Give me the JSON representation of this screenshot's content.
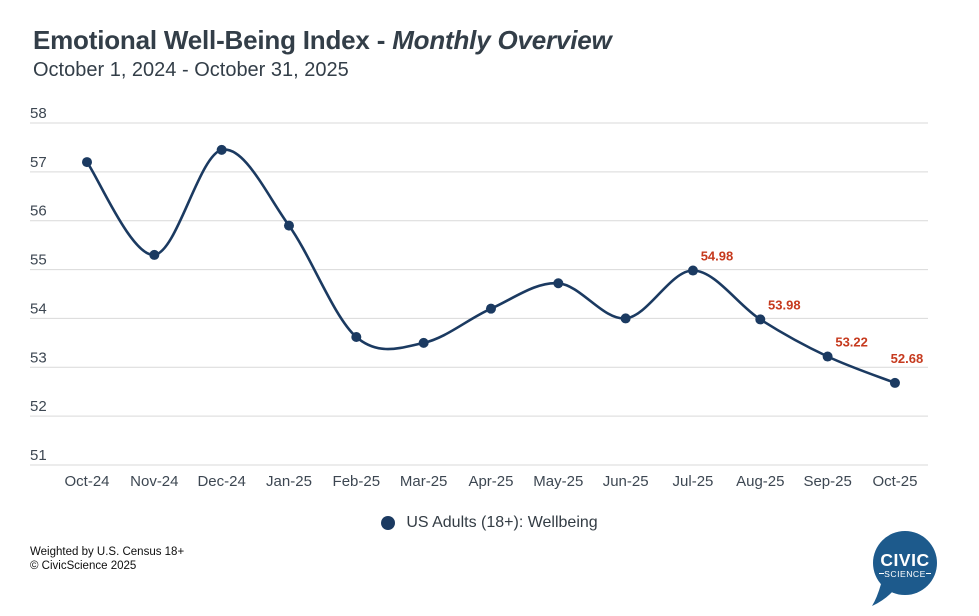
{
  "header": {
    "title_main": "Emotional Well-Being Index - ",
    "title_emphasis": "Monthly Overview",
    "subtitle": "October 1, 2024 - October 31, 2025"
  },
  "chart_data": {
    "type": "line",
    "title": "Emotional Well-Being Index - Monthly Overview",
    "subtitle": "October 1, 2024 - October 31, 2025",
    "categories": [
      "Oct-24",
      "Nov-24",
      "Dec-24",
      "Jan-25",
      "Feb-25",
      "Mar-25",
      "Apr-25",
      "May-25",
      "Jun-25",
      "Jul-25",
      "Aug-25",
      "Sep-25",
      "Oct-25"
    ],
    "series": [
      {
        "name": "US Adults (18+): Wellbeing",
        "values": [
          57.2,
          55.3,
          57.45,
          55.9,
          53.62,
          53.5,
          54.2,
          54.72,
          54.0,
          54.98,
          53.98,
          53.22,
          52.68
        ]
      }
    ],
    "data_labels": [
      null,
      null,
      null,
      null,
      null,
      null,
      null,
      null,
      null,
      "54.98",
      "53.98",
      "53.22",
      "52.68"
    ],
    "ylim": [
      51,
      58
    ],
    "y_ticks": [
      58,
      57,
      56,
      55,
      54,
      53,
      52,
      51
    ],
    "xlabel": "",
    "ylabel": "",
    "grid": true,
    "legend_position": "bottom",
    "colors": {
      "line": "#1b3a61",
      "point": "#1b3a61",
      "data_label": "#c63a1e",
      "grid": "#d9d9d9",
      "axis_text": "#3d4752"
    }
  },
  "legend": {
    "label": "US Adults (18+): Wellbeing"
  },
  "footer": {
    "weighting_note": "Weighted by U.S. Census 18+",
    "copyright": "© CivicScience 2025"
  },
  "logo": {
    "line1": "CIVIC",
    "line2": "SCIENCE",
    "color": "#1d5a8c"
  }
}
